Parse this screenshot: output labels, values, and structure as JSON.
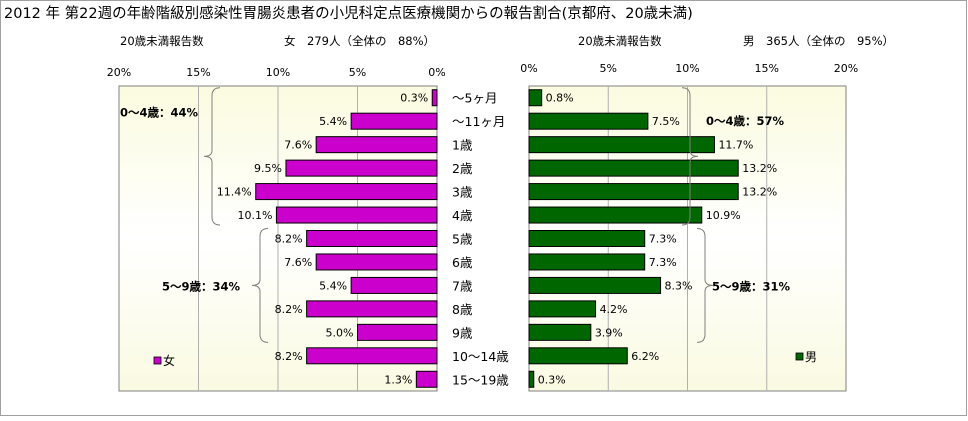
{
  "title": "2012 年 第22週の年齢階級別感染性胃腸炎患者の小児科定点医療機関からの報告割合(京都府、20歳未満)",
  "colors": {
    "female": "#cc00cc",
    "male": "#006600",
    "plot_top": "#fbfbe0",
    "plot_bottom": "#fafae2",
    "plot_mid": "#ffffff"
  },
  "chart_data": [
    {
      "type": "bar",
      "orientation": "horizontal",
      "direction": "reversed",
      "header_left": "20歳未満報告数",
      "header_right": "女　279人（全体の　88%）",
      "legend": "女",
      "legend_position": "bottom-left",
      "xlim": [
        0,
        20
      ],
      "ticks": [
        "20%",
        "15%",
        "10%",
        "5%",
        "0%"
      ],
      "tick_values": [
        20,
        15,
        10,
        5,
        0
      ],
      "categories": [
        "～5ヶ月",
        "～11ヶ月",
        "1歳",
        "2歳",
        "3歳",
        "4歳",
        "5歳",
        "6歳",
        "7歳",
        "8歳",
        "9歳",
        "10～14歳",
        "15～19歳"
      ],
      "values": [
        0.3,
        5.4,
        7.6,
        9.5,
        11.4,
        10.1,
        8.2,
        7.6,
        5.4,
        8.2,
        5.0,
        8.2,
        1.3
      ],
      "labels": [
        "0.3%",
        "5.4%",
        "7.6%",
        "9.5%",
        "11.4%",
        "10.1%",
        "8.2%",
        "7.6%",
        "5.4%",
        "8.2%",
        "5.0%",
        "8.2%",
        "1.3%"
      ],
      "groups": [
        {
          "label": "0～4歳：44%",
          "from": 0,
          "to": 5
        },
        {
          "label": "5～9歳：34%",
          "from": 6,
          "to": 10
        }
      ]
    },
    {
      "type": "bar",
      "orientation": "horizontal",
      "header_left": "20歳未満報告数",
      "header_right": "男　365人（全体の　95%）",
      "legend": "男",
      "legend_position": "bottom-right",
      "xlim": [
        0,
        20
      ],
      "ticks": [
        "0%",
        "5%",
        "10%",
        "15%",
        "20%"
      ],
      "tick_values": [
        0,
        5,
        10,
        15,
        20
      ],
      "values": [
        0.8,
        7.5,
        11.7,
        13.2,
        13.2,
        10.9,
        7.3,
        7.3,
        8.3,
        4.2,
        3.9,
        6.2,
        0.3
      ],
      "labels": [
        "0.8%",
        "7.5%",
        "11.7%",
        "13.2%",
        "13.2%",
        "10.9%",
        "7.3%",
        "7.3%",
        "8.3%",
        "4.2%",
        "3.9%",
        "6.2%",
        "0.3%"
      ],
      "groups": [
        {
          "label": "0～4歳：57%",
          "from": 0,
          "to": 5
        },
        {
          "label": "5～9歳：31%",
          "from": 6,
          "to": 10
        }
      ]
    }
  ]
}
